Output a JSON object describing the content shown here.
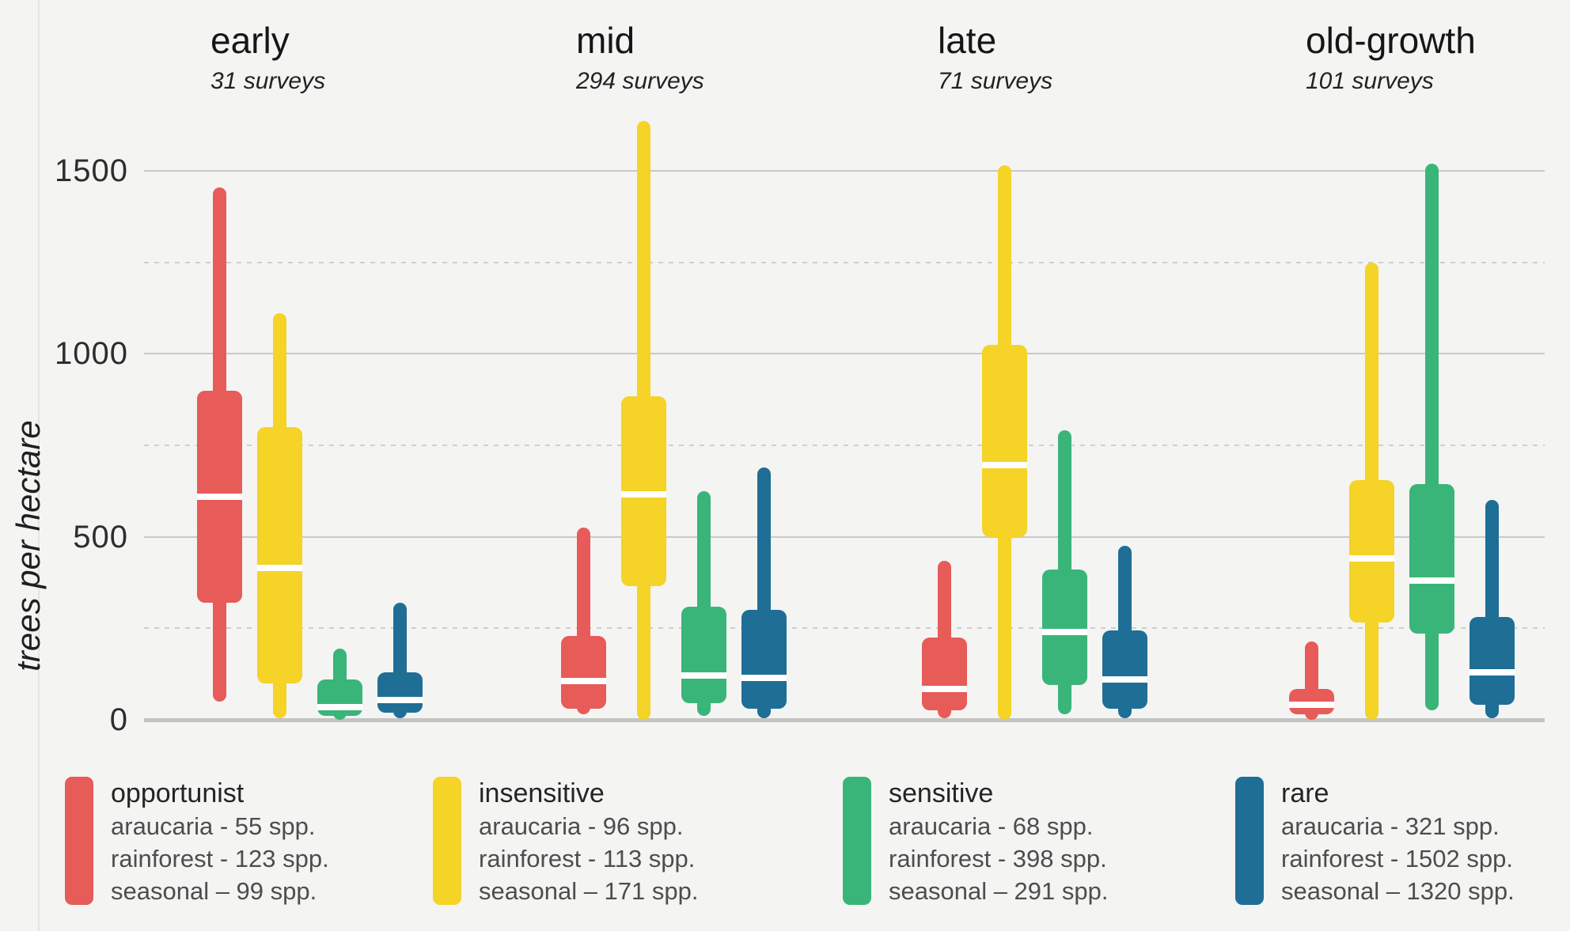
{
  "accent_colors": {
    "opportunist": "#e75b58",
    "insensitive": "#f5d327",
    "sensitive": "#3ab579",
    "rare": "#1f6e96",
    "background": "#f4f4f3",
    "grid_major": "#c9c9c9",
    "grid_minor": "#cecece",
    "baseline": "#c3c3c2"
  },
  "chart_data": {
    "type": "boxplot",
    "title": "",
    "xlabel": "",
    "ylabel": "trees per hectare",
    "ylim": [
      0,
      1500
    ],
    "ytick_major": [
      0,
      500,
      1000,
      1500
    ],
    "ytick_minor": [
      250,
      750,
      1250
    ],
    "grid": "horizontal; major solid, minor dashed; thick baseline at 0",
    "legend_position": "bottom",
    "groups": [
      {
        "label": "early",
        "sublabel": "31 surveys",
        "boxes": [
          {
            "series": "opportunist",
            "low": 50,
            "q1": 320,
            "median": 610,
            "q3": 900,
            "high": 1455
          },
          {
            "series": "insensitive",
            "low": 5,
            "q1": 100,
            "median": 415,
            "q3": 800,
            "high": 1110
          },
          {
            "series": "sensitive",
            "low": 0,
            "q1": 10,
            "median": 35,
            "q3": 110,
            "high": 195
          },
          {
            "series": "rare",
            "low": 5,
            "q1": 20,
            "median": 55,
            "q3": 130,
            "high": 320
          }
        ]
      },
      {
        "label": "mid",
        "sublabel": "294 surveys",
        "boxes": [
          {
            "series": "opportunist",
            "low": 15,
            "q1": 30,
            "median": 105,
            "q3": 230,
            "high": 525
          },
          {
            "series": "insensitive",
            "low": 0,
            "q1": 365,
            "median": 615,
            "q3": 885,
            "high": 1635
          },
          {
            "series": "sensitive",
            "low": 10,
            "q1": 45,
            "median": 120,
            "q3": 310,
            "high": 625
          },
          {
            "series": "rare",
            "low": 5,
            "q1": 30,
            "median": 115,
            "q3": 300,
            "high": 690
          }
        ]
      },
      {
        "label": "late",
        "sublabel": "71 surveys",
        "boxes": [
          {
            "series": "opportunist",
            "low": 5,
            "q1": 25,
            "median": 85,
            "q3": 225,
            "high": 435
          },
          {
            "series": "insensitive",
            "low": 0,
            "q1": 500,
            "median": 695,
            "q3": 1025,
            "high": 1515
          },
          {
            "series": "sensitive",
            "low": 15,
            "q1": 95,
            "median": 240,
            "q3": 410,
            "high": 790
          },
          {
            "series": "rare",
            "low": 5,
            "q1": 30,
            "median": 110,
            "q3": 245,
            "high": 475
          }
        ]
      },
      {
        "label": "old-growth",
        "sublabel": "101 surveys",
        "boxes": [
          {
            "series": "opportunist",
            "low": 0,
            "q1": 15,
            "median": 40,
            "q3": 85,
            "high": 215
          },
          {
            "series": "insensitive",
            "low": 0,
            "q1": 265,
            "median": 440,
            "q3": 655,
            "high": 1250
          },
          {
            "series": "sensitive",
            "low": 25,
            "q1": 235,
            "median": 380,
            "q3": 645,
            "high": 1520
          },
          {
            "series": "rare",
            "low": 5,
            "q1": 40,
            "median": 130,
            "q3": 280,
            "high": 600
          }
        ]
      }
    ],
    "series": [
      {
        "name": "opportunist",
        "color": "#e75b58",
        "entries": [
          "araucaria - 55 spp.",
          "rainforest - 123 spp.",
          "seasonal – 99 spp."
        ]
      },
      {
        "name": "insensitive",
        "color": "#f5d327",
        "entries": [
          "araucaria - 96 spp.",
          "rainforest - 113 spp.",
          "seasonal – 171 spp."
        ]
      },
      {
        "name": "sensitive",
        "color": "#3ab579",
        "entries": [
          "araucaria - 68 spp.",
          "rainforest - 398 spp.",
          "seasonal – 291 spp."
        ]
      },
      {
        "name": "rare",
        "color": "#1f6e96",
        "entries": [
          "araucaria - 321 spp.",
          "rainforest - 1502 spp.",
          "seasonal – 1320 spp."
        ]
      }
    ]
  }
}
